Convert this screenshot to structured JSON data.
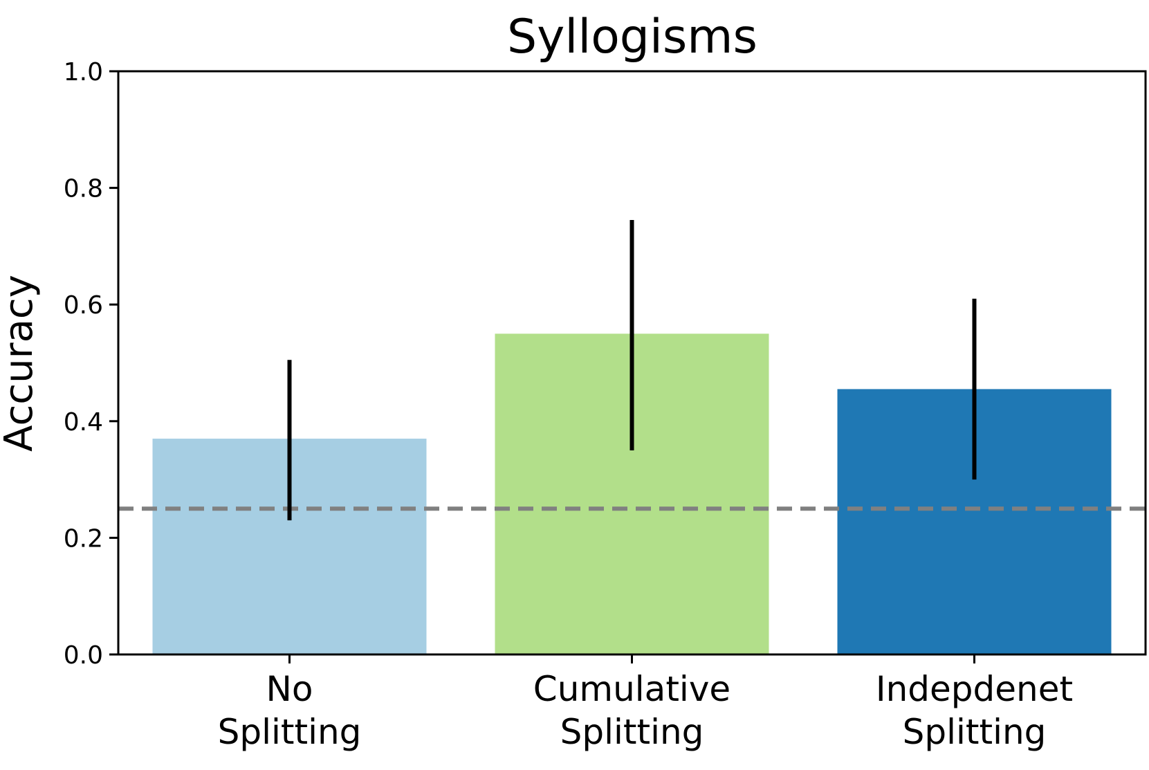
{
  "chart_data": {
    "type": "bar",
    "title": "Syllogisms",
    "xlabel": "",
    "ylabel": "Accuracy",
    "ylim": [
      0,
      1.0
    ],
    "yticks": [
      "0.0",
      "0.2",
      "0.4",
      "0.6",
      "0.8",
      "1.0"
    ],
    "categories": [
      [
        "No",
        "Splitting"
      ],
      [
        "Cumulative",
        "Splitting"
      ],
      [
        "Indepdenet",
        "Splitting"
      ]
    ],
    "values": [
      0.37,
      0.55,
      0.455
    ],
    "error_low": [
      0.23,
      0.35,
      0.3
    ],
    "error_high": [
      0.505,
      0.745,
      0.61
    ],
    "colors": [
      "#a6cee3",
      "#b2df8a",
      "#1f78b4"
    ],
    "reference_line": {
      "value": 0.25,
      "style": "dashed",
      "color": "#808080"
    },
    "grid": false
  }
}
